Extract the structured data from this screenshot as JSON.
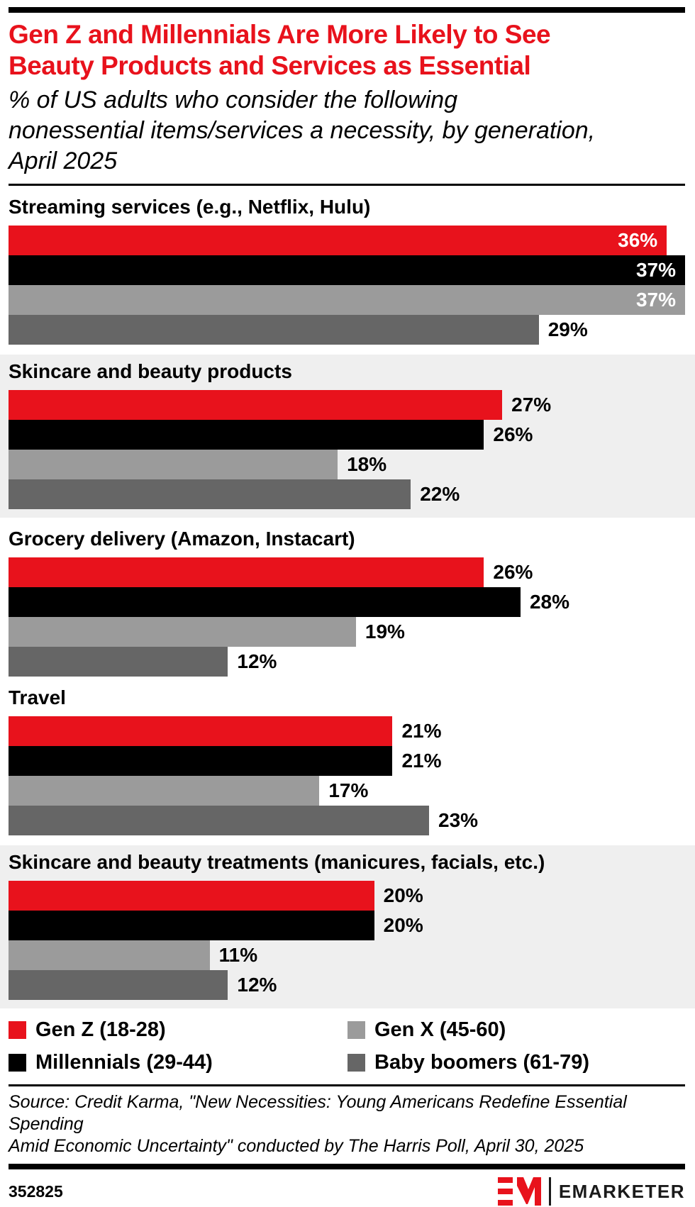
{
  "header": {
    "title_lines": [
      "Gen Z and Millennials Are More Likely to See",
      "Beauty Products and Services as Essential"
    ],
    "subtitle_lines": [
      "% of US adults who consider the following",
      "nonessential items/services a necessity, by generation,",
      "April 2025"
    ]
  },
  "colors": {
    "brand_red": "#e8121c",
    "millennials_black": "#000000",
    "gen_x_gray": "#9b9b9b",
    "boomers_gray": "#666666",
    "section_bg": "#efefef",
    "inside_label": "#ffffff"
  },
  "chart_data": {
    "type": "bar",
    "orientation": "horizontal",
    "unit": "%",
    "axis_max": 37,
    "value_suffix": "%",
    "series_names": [
      "Gen Z (18-28)",
      "Millennials (29-44)",
      "Gen X (45-60)",
      "Baby boomers (61-79)"
    ],
    "series_colors": [
      "#e8121c",
      "#000000",
      "#9b9b9b",
      "#666666"
    ],
    "categories": [
      "Streaming services (e.g., Netflix, Hulu)",
      "Skincare and beauty products",
      "Grocery delivery (Amazon, Instacart)",
      "Travel",
      "Skincare and beauty treatments (manicures, facials, etc.)"
    ],
    "groups": [
      {
        "label": "Streaming services (e.g., Netflix, Hulu)",
        "values": [
          36,
          37,
          37,
          29
        ],
        "shaded": false
      },
      {
        "label": "Skincare and beauty products",
        "values": [
          27,
          26,
          18,
          22
        ],
        "shaded": true
      },
      {
        "label": "Grocery delivery (Amazon, Instacart)",
        "values": [
          26,
          28,
          19,
          12
        ],
        "shaded": false
      },
      {
        "label": "Travel",
        "values": [
          21,
          21,
          17,
          23
        ],
        "shaded": false
      },
      {
        "label": "Skincare and beauty treatments (manicures, facials, etc.)",
        "values": [
          20,
          20,
          11,
          12
        ],
        "shaded": true
      }
    ]
  },
  "legend": {
    "items": [
      {
        "label": "Gen Z (18-28)",
        "color": "#e8121c"
      },
      {
        "label": "Gen X (45-60)",
        "color": "#9b9b9b"
      },
      {
        "label": "Millennials (29-44)",
        "color": "#000000"
      },
      {
        "label": "Baby boomers (61-79)",
        "color": "#666666"
      }
    ]
  },
  "source_lines": [
    "Source: Credit Karma, \"New Necessities: Young Americans Redefine Essential Spending",
    "Amid Economic Uncertainty\" conducted by The Harris Poll, April 30, 2025"
  ],
  "footer": {
    "chart_id": "352825",
    "brand": "EMARKETER"
  }
}
